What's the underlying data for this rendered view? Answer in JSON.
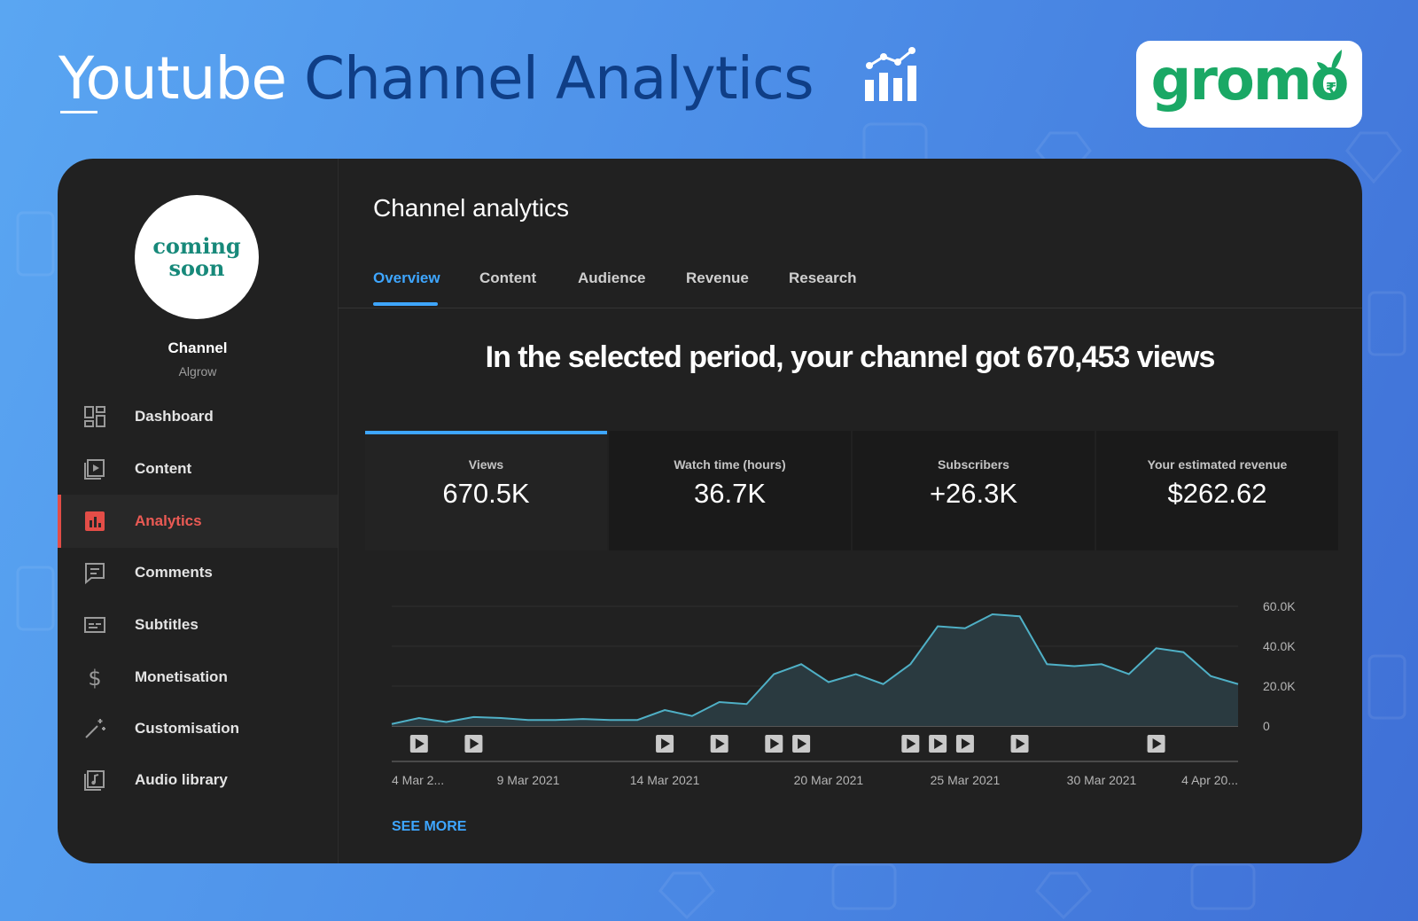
{
  "page": {
    "title_word1": "Youtube",
    "title_rest": "Channel Analytics",
    "title_icon": "bar-chart-trend-icon",
    "logo_text": "gromo",
    "logo_icon": "rupee-sprout-icon"
  },
  "sidebar": {
    "avatar_line1": "coming",
    "avatar_line2": "soon",
    "channel_name": "Channel",
    "channel_sub": "Algrow",
    "items": [
      {
        "label": "Dashboard",
        "icon": "dashboard-icon",
        "active": false
      },
      {
        "label": "Content",
        "icon": "content-icon",
        "active": false
      },
      {
        "label": "Analytics",
        "icon": "analytics-icon",
        "active": true
      },
      {
        "label": "Comments",
        "icon": "comments-icon",
        "active": false
      },
      {
        "label": "Subtitles",
        "icon": "subtitles-icon",
        "active": false
      },
      {
        "label": "Monetisation",
        "icon": "monetisation-icon",
        "active": false
      },
      {
        "label": "Customisation",
        "icon": "customisation-icon",
        "active": false
      },
      {
        "label": "Audio library",
        "icon": "audio-library-icon",
        "active": false
      }
    ]
  },
  "main": {
    "title": "Channel analytics",
    "tabs": [
      {
        "label": "Overview",
        "active": true
      },
      {
        "label": "Content",
        "active": false
      },
      {
        "label": "Audience",
        "active": false
      },
      {
        "label": "Revenue",
        "active": false
      },
      {
        "label": "Research",
        "active": false
      }
    ],
    "headline": "In the selected period, your channel got 670,453 views",
    "metrics": [
      {
        "label": "Views",
        "value": "670.5K",
        "active": true
      },
      {
        "label": "Watch time (hours)",
        "value": "36.7K",
        "active": false
      },
      {
        "label": "Subscribers",
        "value": "+26.3K",
        "active": false
      },
      {
        "label": "Your estimated revenue",
        "value": "$262.62",
        "active": false
      }
    ],
    "see_more": "SEE MORE"
  },
  "colors": {
    "accent": "#3ea6ff",
    "active_nav": "#e34d47",
    "panel_bg": "#212121",
    "brand_green": "#1aa865",
    "title_dark": "#0f3e86"
  },
  "chart_data": {
    "type": "area",
    "metric": "Views",
    "y_ticks": [
      "60.0K",
      "40.0K",
      "20.0K",
      "0"
    ],
    "ylim": [
      0,
      60000
    ],
    "x_tick_labels": [
      "4 Mar 2...",
      "9 Mar 2021",
      "14 Mar 2021",
      "20 Mar 2021",
      "25 Mar 2021",
      "30 Mar 2021",
      "4 Apr 20..."
    ],
    "x_tick_days": [
      0,
      5,
      10,
      16,
      21,
      26,
      31
    ],
    "x_range_days": [
      0,
      31
    ],
    "days": [
      0,
      1,
      2,
      3,
      4,
      5,
      6,
      7,
      8,
      9,
      10,
      11,
      12,
      13,
      14,
      15,
      16,
      17,
      18,
      19,
      20,
      21,
      22,
      23,
      24,
      25,
      26,
      27,
      28,
      29,
      30,
      31
    ],
    "values": [
      1000,
      4000,
      2000,
      4500,
      4000,
      3000,
      3000,
      3500,
      3000,
      3000,
      8000,
      5000,
      12000,
      11000,
      26000,
      31000,
      22000,
      26000,
      21000,
      31000,
      50000,
      49000,
      56000,
      55000,
      31000,
      30000,
      31000,
      26000,
      39000,
      37000,
      25000,
      21000
    ],
    "video_marker_days": [
      1,
      3,
      10,
      12,
      14,
      15,
      19,
      20,
      21,
      23,
      28
    ]
  }
}
